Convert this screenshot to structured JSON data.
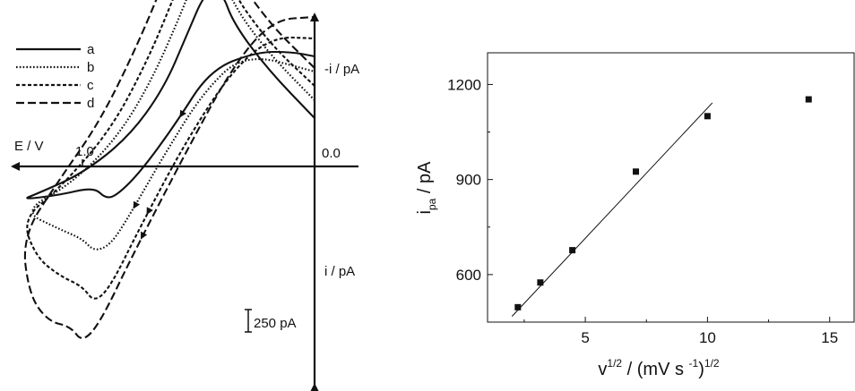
{
  "chart_data": [
    {
      "type": "line",
      "title": "",
      "axes": {
        "x_label": "E / V",
        "x_tick": "1.0",
        "origin_label": "0.0",
        "y_up_label": "-i / pA",
        "y_down_label": "i / pA",
        "scale_bar_label": "250 pA",
        "x_direction": "reversed",
        "x_range_V": [
          1.3,
          0.0
        ]
      },
      "legend": {
        "placement": "top-left",
        "entries": [
          {
            "label": "a",
            "dash": "solid"
          },
          {
            "label": "b",
            "dash": "dotted"
          },
          {
            "label": "c",
            "dash": "short-dash"
          },
          {
            "label": "d",
            "dash": "long-dash"
          }
        ]
      },
      "series_note": "Cyclic voltammograms a-d; i in pA (anodic plotted upward), E in V",
      "series": [
        {
          "label": "a",
          "forward": [
            [
              0.0,
              540
            ],
            [
              0.2,
              1080
            ],
            [
              0.35,
              1600
            ],
            [
              0.4,
              1960
            ],
            [
              0.47,
              1960
            ],
            [
              0.55,
              1470
            ],
            [
              0.65,
              870
            ],
            [
              0.8,
              330
            ],
            [
              1.0,
              -80
            ],
            [
              1.2,
              -310
            ],
            [
              1.26,
              -370
            ]
          ],
          "reverse": [
            [
              1.26,
              -370
            ],
            [
              1.1,
              -320
            ],
            [
              0.95,
              -230
            ],
            [
              0.9,
              -360
            ],
            [
              0.85,
              -320
            ],
            [
              0.75,
              -60
            ],
            [
              0.6,
              470
            ],
            [
              0.45,
              1080
            ],
            [
              0.25,
              1280
            ],
            [
              0.1,
              1280
            ],
            [
              0.0,
              1230
            ]
          ]
        },
        {
          "label": "b",
          "forward": [
            [
              0.0,
              740
            ],
            [
              0.2,
              1270
            ],
            [
              0.36,
              1840
            ],
            [
              0.42,
              2350
            ],
            [
              0.48,
              2350
            ],
            [
              0.57,
              1740
            ],
            [
              0.7,
              970
            ],
            [
              0.85,
              320
            ],
            [
              1.05,
              -200
            ],
            [
              1.26,
              -500
            ]
          ],
          "reverse": [
            [
              1.26,
              -500
            ],
            [
              1.1,
              -700
            ],
            [
              1.0,
              -810
            ],
            [
              0.95,
              -950
            ],
            [
              0.88,
              -880
            ],
            [
              0.8,
              -560
            ],
            [
              0.65,
              120
            ],
            [
              0.48,
              830
            ],
            [
              0.3,
              1270
            ],
            [
              0.0,
              1060
            ]
          ]
        },
        {
          "label": "c",
          "forward": [
            [
              0.0,
              900
            ],
            [
              0.2,
              1390
            ],
            [
              0.37,
              2010
            ],
            [
              0.43,
              2590
            ],
            [
              0.5,
              2590
            ],
            [
              0.6,
              1930
            ],
            [
              0.72,
              1180
            ],
            [
              0.88,
              400
            ],
            [
              1.1,
              -250
            ],
            [
              1.26,
              -590
            ]
          ],
          "reverse": [
            [
              1.26,
              -590
            ],
            [
              1.2,
              -1010
            ],
            [
              1.1,
              -1220
            ],
            [
              1.0,
              -1340
            ],
            [
              0.95,
              -1520
            ],
            [
              0.88,
              -1350
            ],
            [
              0.75,
              -670
            ],
            [
              0.55,
              300
            ],
            [
              0.35,
              1090
            ],
            [
              0.18,
              1450
            ],
            [
              0.0,
              1430
            ]
          ]
        },
        {
          "label": "d",
          "forward": [
            [
              0.0,
              1100
            ],
            [
              0.2,
              1610
            ],
            [
              0.38,
              2290
            ],
            [
              0.44,
              2920
            ],
            [
              0.51,
              2920
            ],
            [
              0.62,
              2260
            ],
            [
              0.75,
              1430
            ],
            [
              0.92,
              520
            ],
            [
              1.1,
              -150
            ],
            [
              1.26,
              -780
            ]
          ],
          "reverse": [
            [
              1.26,
              -780
            ],
            [
              1.23,
              -1430
            ],
            [
              1.15,
              -1730
            ],
            [
              1.05,
              -1790
            ],
            [
              1.0,
              -1970
            ],
            [
              0.92,
              -1730
            ],
            [
              0.78,
              -970
            ],
            [
              0.55,
              180
            ],
            [
              0.35,
              1130
            ],
            [
              0.18,
              1640
            ],
            [
              0.0,
              1670
            ]
          ]
        }
      ]
    },
    {
      "type": "scatter",
      "title": "",
      "xlabel": {
        "base": "v",
        "sup1": "1/2",
        "mid": " / (mV s ",
        "sup2": "-1",
        "end": ")",
        "sup3": "1/2"
      },
      "ylabel": {
        "base": "i",
        "sub": "pa",
        "end": " / pA"
      },
      "xlim": [
        1,
        16
      ],
      "ylim": [
        450,
        1300
      ],
      "xticks": [
        5,
        10,
        15
      ],
      "yticks": [
        600,
        900,
        1200
      ],
      "x": [
        2.24,
        3.16,
        4.47,
        7.07,
        10.0,
        14.14
      ],
      "y": [
        497,
        575,
        677,
        925,
        1100,
        1153
      ],
      "fit_line": {
        "x": [
          2.0,
          10.2
        ],
        "y": [
          468,
          1142
        ]
      }
    }
  ]
}
